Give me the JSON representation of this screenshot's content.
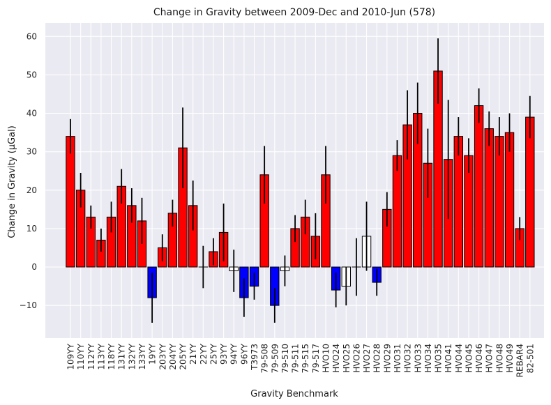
{
  "chart_data": {
    "type": "bar",
    "title": "Change in Gravity between 2009-Dec and 2010-Jun (578)",
    "xlabel": "Gravity Benchmark",
    "ylabel": "Change in Gravity (µGal)",
    "ylim": [
      -18.5,
      63.5
    ],
    "yticks": [
      -10,
      0,
      10,
      20,
      30,
      40,
      50,
      60
    ],
    "ytick_labels": [
      "−10",
      "0",
      "10",
      "20",
      "30",
      "40",
      "50",
      "60"
    ],
    "grid": true,
    "colors": {
      "positive": "#ff0000",
      "negative": "#0000ff",
      "insignificant": "#ffffff",
      "edge": "#000000",
      "error": "#000000",
      "plot_bg": "#eaeaf2",
      "grid": "#ffffff"
    },
    "bars": [
      {
        "name": "109YY",
        "value": 34,
        "error": 4.5,
        "color": "red"
      },
      {
        "name": "110YY",
        "value": 20,
        "error": 4.5,
        "color": "red"
      },
      {
        "name": "112YY",
        "value": 13,
        "error": 3,
        "color": "red"
      },
      {
        "name": "113YY",
        "value": 7,
        "error": 3,
        "color": "red"
      },
      {
        "name": "118YY",
        "value": 13,
        "error": 4,
        "color": "red"
      },
      {
        "name": "131YY",
        "value": 21,
        "error": 4.5,
        "color": "red"
      },
      {
        "name": "132YY",
        "value": 16,
        "error": 4.5,
        "color": "red"
      },
      {
        "name": "133YY",
        "value": 12,
        "error": 6,
        "color": "red"
      },
      {
        "name": "19YY",
        "value": -8,
        "error": 6.5,
        "color": "blue"
      },
      {
        "name": "203YY",
        "value": 5,
        "error": 3.5,
        "color": "red"
      },
      {
        "name": "204YY",
        "value": 14,
        "error": 3.5,
        "color": "red"
      },
      {
        "name": "205YY",
        "value": 31,
        "error": 10.5,
        "color": "red"
      },
      {
        "name": "21YY",
        "value": 16,
        "error": 6.5,
        "color": "red"
      },
      {
        "name": "22YY",
        "value": 0,
        "error": 5.5,
        "color": "white"
      },
      {
        "name": "25YY",
        "value": 4,
        "error": 3.5,
        "color": "red"
      },
      {
        "name": "93YY",
        "value": 9,
        "error": 7.5,
        "color": "red"
      },
      {
        "name": "94YY",
        "value": -1,
        "error": 5.5,
        "color": "white"
      },
      {
        "name": "96YY",
        "value": -8,
        "error": 5,
        "color": "blue"
      },
      {
        "name": "T3973",
        "value": -5,
        "error": 3.5,
        "color": "blue"
      },
      {
        "name": "79-508",
        "value": 24,
        "error": 7.5,
        "color": "red"
      },
      {
        "name": "79-509",
        "value": -10,
        "error": 4.5,
        "color": "blue"
      },
      {
        "name": "79-510",
        "value": -1,
        "error": 4,
        "color": "white"
      },
      {
        "name": "79-511",
        "value": 10,
        "error": 3.5,
        "color": "red"
      },
      {
        "name": "79-515",
        "value": 13,
        "error": 4.5,
        "color": "red"
      },
      {
        "name": "79-517",
        "value": 8,
        "error": 6,
        "color": "red"
      },
      {
        "name": "HVO10",
        "value": 24,
        "error": 7.5,
        "color": "red"
      },
      {
        "name": "HVO24",
        "value": -6,
        "error": 4.5,
        "color": "blue"
      },
      {
        "name": "HVO25",
        "value": -5,
        "error": 5,
        "color": "white"
      },
      {
        "name": "HVO26",
        "value": 0,
        "error": 7.5,
        "color": "white"
      },
      {
        "name": "HVO27",
        "value": 8,
        "error": 9,
        "color": "white"
      },
      {
        "name": "HVO28",
        "value": -4,
        "error": 3.5,
        "color": "blue"
      },
      {
        "name": "HVO29",
        "value": 15,
        "error": 4.5,
        "color": "red"
      },
      {
        "name": "HVO31",
        "value": 29,
        "error": 4,
        "color": "red"
      },
      {
        "name": "HVO32",
        "value": 37,
        "error": 9,
        "color": "red"
      },
      {
        "name": "HVO33",
        "value": 40,
        "error": 8,
        "color": "red"
      },
      {
        "name": "HVO34",
        "value": 27,
        "error": 9,
        "color": "red"
      },
      {
        "name": "HVO35",
        "value": 51,
        "error": 8.5,
        "color": "red"
      },
      {
        "name": "HVO41",
        "value": 28,
        "error": 15.5,
        "color": "red"
      },
      {
        "name": "HVO44",
        "value": 34,
        "error": 5,
        "color": "red"
      },
      {
        "name": "HVO45",
        "value": 29,
        "error": 4.5,
        "color": "red"
      },
      {
        "name": "HVO46",
        "value": 42,
        "error": 4.5,
        "color": "red"
      },
      {
        "name": "HVO47",
        "value": 36,
        "error": 4.5,
        "color": "red"
      },
      {
        "name": "HVO48",
        "value": 34,
        "error": 5,
        "color": "red"
      },
      {
        "name": "HVO49",
        "value": 35,
        "error": 5,
        "color": "red"
      },
      {
        "name": "REBAR4",
        "value": 10,
        "error": 3,
        "color": "red"
      },
      {
        "name": "82-501",
        "value": 39,
        "error": 5.5,
        "color": "red"
      }
    ]
  }
}
